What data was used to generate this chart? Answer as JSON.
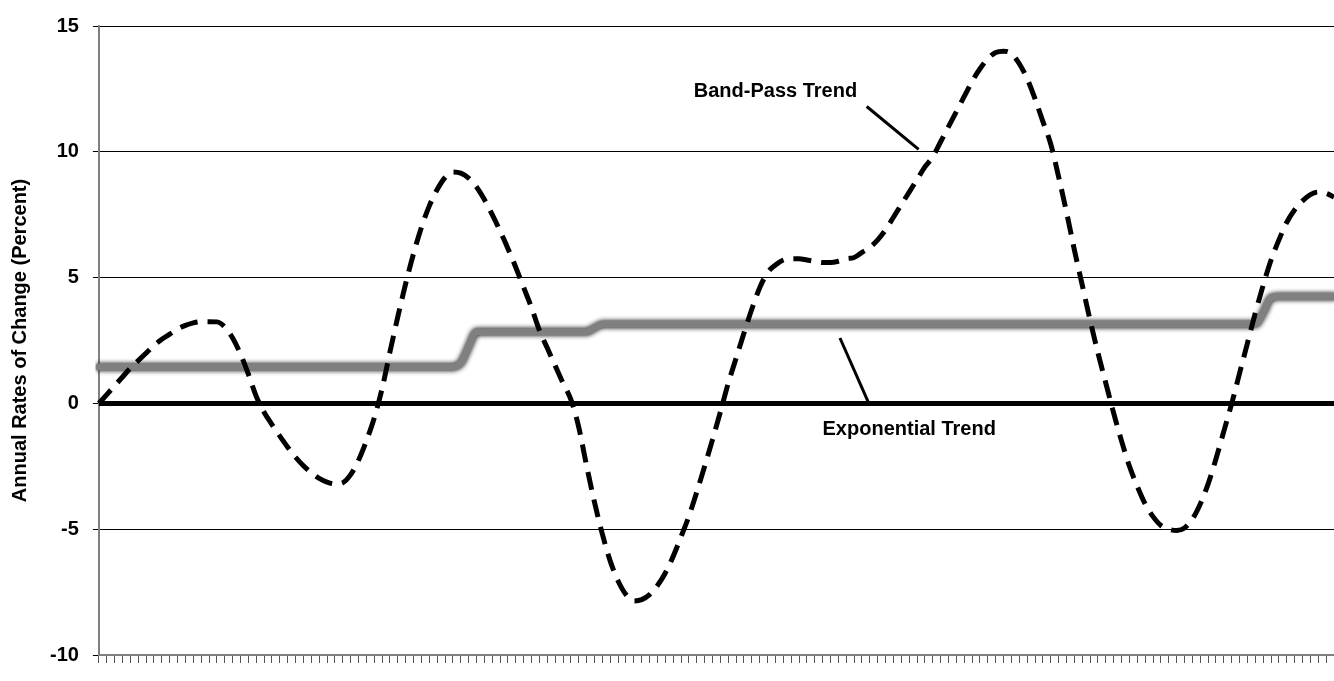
{
  "chart_data": {
    "type": "line",
    "ylabel": "Annual Rates of Change (Percent)",
    "categories": [
      null,
      null,
      null,
      null,
      null,
      null,
      null,
      null,
      null,
      null,
      null,
      null,
      null,
      null,
      null,
      null,
      null,
      null,
      null,
      null,
      null,
      null,
      null,
      null,
      null,
      null,
      null,
      null,
      null,
      null,
      null,
      null,
      null,
      null,
      null,
      null,
      null,
      null,
      null,
      null,
      null,
      null,
      null,
      null,
      null,
      null,
      null,
      null,
      null,
      null,
      null,
      null,
      null,
      null,
      null,
      null,
      null,
      null,
      null,
      null,
      null,
      null,
      null,
      null,
      null,
      null,
      null,
      null,
      null,
      null,
      null,
      null,
      null,
      null,
      null,
      null,
      null,
      null,
      null,
      null,
      null,
      null,
      null,
      null,
      null,
      null,
      null,
      null,
      null,
      null,
      null,
      null,
      null,
      null,
      null,
      null,
      null,
      null,
      null,
      null,
      null,
      null,
      null,
      null,
      null,
      null,
      null,
      null,
      null,
      null,
      null,
      null,
      null,
      null,
      null,
      null,
      null,
      null,
      null,
      null,
      null,
      null,
      null,
      null,
      null,
      null,
      null,
      null,
      null,
      null,
      null,
      null,
      null,
      null,
      null,
      null,
      null,
      null,
      null,
      null,
      null,
      null,
      null,
      null,
      null,
      null,
      null,
      null,
      null,
      null,
      null,
      null,
      null,
      null,
      null,
      null,
      null,
      null
    ],
    "series": [
      {
        "color": "#808080",
        "line_style": "solid",
        "values": [
          1.45,
          1.45,
          1.45,
          1.45,
          1.45,
          1.45,
          1.45,
          1.45,
          1.45,
          1.45,
          1.45,
          1.45,
          1.45,
          1.45,
          1.45,
          1.45,
          1.45,
          1.45,
          1.45,
          1.45,
          1.45,
          1.45,
          1.45,
          1.45,
          1.45,
          1.45,
          1.45,
          1.45,
          1.45,
          1.45,
          1.45,
          1.45,
          1.45,
          1.45,
          1.45,
          1.45,
          1.45,
          1.45,
          1.45,
          1.45,
          1.45,
          1.45,
          1.45,
          1.45,
          1.45,
          1.45,
          1.6,
          2.25,
          2.85,
          2.85,
          2.85,
          2.85,
          2.85,
          2.85,
          2.85,
          2.85,
          2.85,
          2.85,
          2.85,
          2.85,
          2.85,
          2.85,
          2.85,
          3.0,
          3.15,
          3.15,
          3.15,
          3.15,
          3.15,
          3.15,
          3.15,
          3.15,
          3.15,
          3.15,
          3.15,
          3.15,
          3.15,
          3.15,
          3.15,
          3.15,
          3.15,
          3.15,
          3.15,
          3.15,
          3.15,
          3.15,
          3.15,
          3.15,
          3.15,
          3.15,
          3.15,
          3.15,
          3.15,
          3.15,
          3.15,
          3.15,
          3.15,
          3.15,
          3.15,
          3.15,
          3.15,
          3.15,
          3.15,
          3.15,
          3.15,
          3.15,
          3.15,
          3.15,
          3.15,
          3.15,
          3.15,
          3.15,
          3.15,
          3.15,
          3.15,
          3.15,
          3.15,
          3.15,
          3.15,
          3.15,
          3.15,
          3.15,
          3.15,
          3.15,
          3.15,
          3.15,
          3.15,
          3.15,
          3.15,
          3.15,
          3.15,
          3.15,
          3.15,
          3.15,
          3.15,
          3.15,
          3.15,
          3.15,
          3.15,
          3.15,
          3.15,
          3.15,
          3.15,
          3.15,
          3.15,
          3.15,
          3.15,
          3.15,
          3.6,
          4.2,
          4.25,
          4.25,
          4.25,
          4.25,
          4.25,
          4.25,
          4.25,
          4.25
        ]
      },
      {
        "color": "#000000",
        "line_style": "dashed",
        "values": [
          0,
          0.35,
          0.7,
          1.05,
          1.4,
          1.7,
          2.0,
          2.3,
          2.55,
          2.75,
          2.95,
          3.1,
          3.2,
          3.25,
          3.25,
          3.24,
          3.04,
          2.6,
          1.96,
          1.16,
          0.28,
          -0.35,
          -0.84,
          -1.3,
          -1.74,
          -2.14,
          -2.48,
          -2.76,
          -2.98,
          -3.13,
          -3.2,
          -3.15,
          -2.83,
          -2.26,
          -1.49,
          -0.58,
          0.59,
          2.05,
          3.45,
          4.77,
          5.96,
          7.0,
          7.85,
          8.5,
          8.98,
          9.2,
          9.15,
          8.95,
          8.6,
          8.1,
          7.5,
          6.85,
          6.15,
          5.4,
          4.6,
          3.8,
          2.9,
          2.2,
          1.5,
          0.8,
          0.15,
          -0.95,
          -2.49,
          -3.93,
          -5.2,
          -6.27,
          -7.06,
          -7.6,
          -7.85,
          -7.8,
          -7.6,
          -7.24,
          -6.74,
          -6.08,
          -5.3,
          -4.48,
          -3.52,
          -2.5,
          -1.44,
          -0.34,
          0.8,
          1.8,
          2.8,
          3.75,
          4.6,
          5.2,
          5.5,
          5.7,
          5.75,
          5.75,
          5.7,
          5.65,
          5.6,
          5.6,
          5.65,
          5.75,
          5.8,
          6.0,
          6.2,
          6.5,
          6.9,
          7.4,
          7.9,
          8.4,
          8.9,
          9.4,
          9.8,
          10.4,
          11.0,
          11.6,
          12.2,
          12.8,
          13.3,
          13.7,
          13.95,
          14.0,
          13.9,
          13.5,
          12.9,
          12.1,
          11.2,
          10.3,
          9.0,
          7.6,
          6.1,
          4.7,
          3.3,
          2.0,
          0.8,
          -0.4,
          -1.5,
          -2.5,
          -3.3,
          -4.0,
          -4.5,
          -4.85,
          -5.0,
          -5.05,
          -4.95,
          -4.6,
          -4.0,
          -3.2,
          -2.2,
          -1.1,
          0.0,
          1.2,
          2.4,
          3.6,
          4.7,
          5.7,
          6.5,
          7.2,
          7.7,
          8.05,
          8.3,
          8.4,
          8.35,
          8.2
        ]
      }
    ],
    "ylim": [
      -10,
      15
    ],
    "yticks": [
      -10,
      -5,
      0,
      5,
      10,
      15
    ],
    "grid": "y",
    "legend": false,
    "tick_labels": "y",
    "marker": "none",
    "ref_lines": [
      {
        "axis": "y",
        "value": 0,
        "color": "#000000"
      }
    ],
    "annotations": [
      "Band-Pass Trend",
      "Exponential Trend"
    ]
  }
}
